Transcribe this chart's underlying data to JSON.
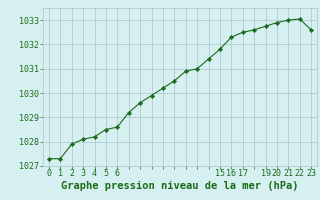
{
  "x": [
    0,
    1,
    2,
    3,
    4,
    5,
    6,
    7,
    8,
    9,
    10,
    11,
    12,
    13,
    14,
    15,
    16,
    17,
    18,
    19,
    20,
    21,
    22,
    23
  ],
  "y": [
    1027.3,
    1027.3,
    1027.9,
    1028.1,
    1028.2,
    1028.5,
    1028.6,
    1029.2,
    1029.6,
    1029.9,
    1030.2,
    1030.5,
    1030.9,
    1031.0,
    1031.4,
    1031.8,
    1032.3,
    1032.5,
    1032.6,
    1032.75,
    1032.9,
    1033.0,
    1033.05,
    1032.6
  ],
  "shown_x_ticks": [
    0,
    1,
    2,
    3,
    4,
    5,
    6,
    15,
    16,
    17,
    19,
    20,
    21,
    22,
    23
  ],
  "x_tick_labels": [
    "0",
    "1",
    "2",
    "3",
    "4",
    "5",
    "6",
    "15",
    "16",
    "17",
    "19",
    "20",
    "21",
    "22",
    "23"
  ],
  "ylim": [
    1027.0,
    1033.5
  ],
  "xlim": [
    -0.5,
    23.5
  ],
  "yticks": [
    1027,
    1028,
    1029,
    1030,
    1031,
    1032,
    1033
  ],
  "line_color": "#1a6b1a",
  "marker": "D",
  "marker_size": 2.2,
  "bg_color": "#d6eff0",
  "grid_color": "#aecdd0",
  "grid_major_color": "#9bbfc2",
  "xlabel": "Graphe pression niveau de la mer (hPa)",
  "xlabel_color": "#1a6b1a",
  "xlabel_fontsize": 7.5,
  "tick_fontsize": 6.0,
  "linewidth": 0.8
}
